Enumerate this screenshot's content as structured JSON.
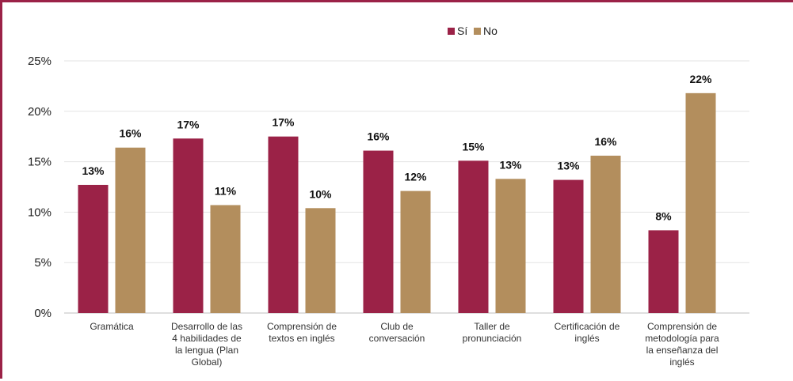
{
  "chart_data": {
    "type": "bar",
    "categories": [
      [
        "Gramática"
      ],
      [
        "Desarrollo de las",
        "4 habilidades de",
        "la lengua (Plan",
        "Global)"
      ],
      [
        "Comprensión de",
        "textos en inglés"
      ],
      [
        "Club de",
        "conversación"
      ],
      [
        "Taller de",
        "pronunciación"
      ],
      [
        "Certificación de",
        "inglés"
      ],
      [
        "Comprensión de",
        "metodología para",
        "la enseñanza del",
        "inglés"
      ]
    ],
    "series": [
      {
        "name": "Sí",
        "color": "#9b2247",
        "values": [
          12.7,
          17.3,
          17.5,
          16.1,
          15.1,
          13.2,
          8.2
        ],
        "labels": [
          "13%",
          "17%",
          "17%",
          "16%",
          "15%",
          "13%",
          "8%"
        ]
      },
      {
        "name": "No",
        "color": "#b38e5d",
        "values": [
          16.4,
          10.7,
          10.4,
          12.1,
          13.3,
          15.6,
          21.8
        ],
        "labels": [
          "16%",
          "11%",
          "10%",
          "12%",
          "13%",
          "16%",
          "22%"
        ]
      }
    ],
    "yticks": [
      "0%",
      "5%",
      "10%",
      "15%",
      "20%",
      "25%"
    ],
    "ylim": [
      0,
      25
    ],
    "grid": true,
    "legend_position": "top-center"
  }
}
